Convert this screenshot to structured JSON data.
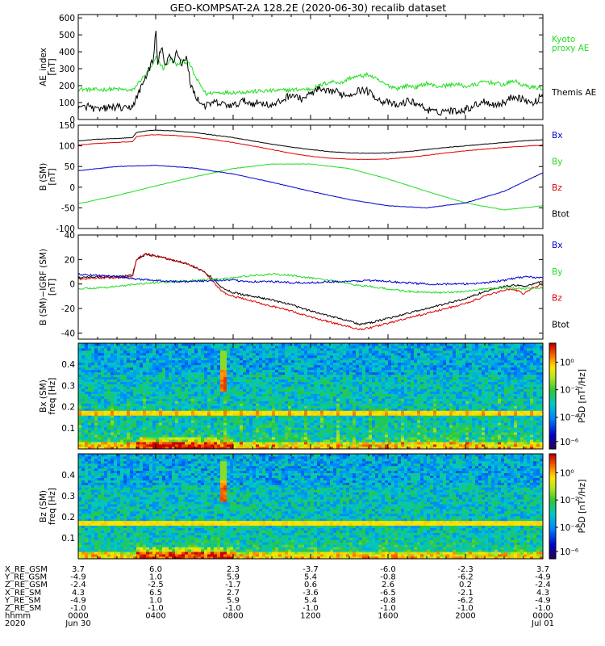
{
  "title": "GEO-KOMPSAT-2A 128.2E (2020-06-30) recalib dataset",
  "colors": {
    "black": "#000000",
    "red": "#e00000",
    "green": "#22dd22",
    "blue": "#0000cc",
    "kyoto": "#22dd22",
    "frame": "#000000"
  },
  "chart_data": [
    {
      "type": "line",
      "id": "ae",
      "ylabel": [
        "AE_index",
        "[nT]"
      ],
      "ylim": [
        0,
        620
      ],
      "yticks": [
        0,
        100,
        200,
        300,
        400,
        500,
        600
      ],
      "xlim": [
        0,
        24
      ],
      "legend": [
        {
          "label_lines": [
            "Kyoto",
            "proxy AE"
          ],
          "color": "#22dd22"
        },
        {
          "label_lines": [
            "Themis AE"
          ],
          "color": "#000000"
        }
      ],
      "series": [
        {
          "name": "Kyoto proxy AE",
          "color": "#22dd22",
          "x": [
            0,
            1,
            2,
            2.8,
            3.2,
            3.6,
            3.9,
            4.0,
            4.4,
            4.8,
            5.1,
            5.4,
            5.8,
            6.0,
            6.6,
            7,
            8,
            9,
            10,
            11,
            12,
            12.8,
            13.2,
            13.6,
            14,
            14.5,
            15,
            15.5,
            16,
            16.5,
            17,
            17.5,
            18,
            18.5,
            19,
            19.5,
            20,
            20.5,
            21,
            21.5,
            22,
            22.5,
            23,
            23.5,
            24
          ],
          "values": [
            180,
            175,
            180,
            170,
            230,
            280,
            330,
            370,
            300,
            360,
            320,
            350,
            320,
            260,
            150,
            160,
            160,
            165,
            170,
            175,
            180,
            215,
            225,
            215,
            245,
            255,
            265,
            230,
            200,
            185,
            200,
            190,
            215,
            195,
            200,
            210,
            195,
            205,
            225,
            215,
            205,
            230,
            200,
            190,
            185
          ]
        },
        {
          "name": "Themis AE",
          "color": "#000000",
          "x": [
            0,
            0.5,
            1,
            1.5,
            2,
            2.5,
            2.8,
            3.1,
            3.4,
            3.7,
            3.9,
            4.0,
            4.1,
            4.3,
            4.5,
            4.7,
            4.9,
            5.1,
            5.3,
            5.6,
            5.8,
            6.0,
            6.3,
            6.6,
            7,
            7.5,
            8,
            8.5,
            9,
            9.5,
            10,
            10.5,
            11,
            11.5,
            12,
            12.4,
            12.8,
            13.2,
            13.6,
            14,
            14.4,
            14.8,
            15.2,
            15.6,
            16,
            16.5,
            17,
            17.5,
            18,
            18.5,
            19,
            19.5,
            20,
            20.5,
            21,
            21.5,
            22,
            22.5,
            23,
            23.5,
            24
          ],
          "values": [
            60,
            80,
            55,
            70,
            75,
            60,
            80,
            150,
            230,
            310,
            360,
            540,
            320,
            440,
            300,
            380,
            340,
            410,
            330,
            360,
            210,
            150,
            100,
            80,
            100,
            90,
            80,
            110,
            95,
            100,
            80,
            110,
            150,
            120,
            150,
            180,
            160,
            170,
            150,
            145,
            170,
            175,
            150,
            110,
            100,
            80,
            110,
            95,
            60,
            40,
            55,
            50,
            60,
            85,
            110,
            85,
            100,
            140,
            120,
            90,
            150
          ]
        }
      ]
    },
    {
      "type": "line",
      "id": "bsm",
      "ylabel": [
        "B (SM)",
        "[nT]"
      ],
      "ylim": [
        -100,
        150
      ],
      "yticks": [
        -100,
        -50,
        0,
        50,
        100,
        150
      ],
      "xlim": [
        0,
        24
      ],
      "legend": [
        {
          "label_lines": [
            "Bx"
          ],
          "color": "#0000cc"
        },
        {
          "label_lines": [
            "By"
          ],
          "color": "#22dd22"
        },
        {
          "label_lines": [
            "Bz"
          ],
          "color": "#e00000"
        },
        {
          "label_lines": [
            "Btot"
          ],
          "color": "#000000"
        }
      ],
      "series": [
        {
          "name": "Btot",
          "color": "#000000",
          "x": [
            0,
            1,
            2,
            2.8,
            3,
            3.6,
            4,
            5,
            6,
            7,
            8,
            9,
            10,
            11,
            12,
            13,
            14,
            15,
            16,
            17,
            18,
            19,
            20,
            21,
            22,
            23,
            24
          ],
          "values": [
            112,
            116,
            118,
            120,
            132,
            137,
            138,
            136,
            132,
            126,
            120,
            112,
            104,
            97,
            91,
            86,
            83,
            82,
            83,
            86,
            91,
            96,
            100,
            104,
            108,
            112,
            115
          ]
        },
        {
          "name": "Bz",
          "color": "#e00000",
          "x": [
            0,
            1,
            2,
            2.8,
            3,
            3.6,
            4,
            5,
            6,
            7,
            8,
            9,
            10,
            11,
            12,
            13,
            14,
            15,
            16,
            17,
            18,
            19,
            20,
            21,
            22,
            23,
            24
          ],
          "values": [
            102,
            106,
            108,
            110,
            122,
            126,
            127,
            125,
            121,
            115,
            108,
            100,
            91,
            82,
            75,
            70,
            68,
            67,
            68,
            72,
            77,
            83,
            88,
            92,
            96,
            99,
            102
          ]
        },
        {
          "name": "By",
          "color": "#22dd22",
          "x": [
            0,
            2,
            4,
            6,
            8,
            10,
            12,
            14,
            16,
            18,
            20,
            22,
            24
          ],
          "values": [
            -40,
            -20,
            3,
            25,
            45,
            56,
            56,
            45,
            20,
            -10,
            -38,
            -55,
            -45
          ]
        },
        {
          "name": "Bx",
          "color": "#0000cc",
          "x": [
            0,
            2,
            4,
            6,
            8,
            10,
            12,
            14,
            16,
            18,
            20,
            22,
            24
          ],
          "values": [
            40,
            50,
            53,
            46,
            32,
            12,
            -10,
            -30,
            -45,
            -50,
            -38,
            -10,
            35
          ]
        }
      ]
    },
    {
      "type": "line",
      "id": "dbsm",
      "ylabel": [
        "B (SM)−IGRF (SM)",
        "[nT]"
      ],
      "ylim": [
        -45,
        40
      ],
      "yticks": [
        -40,
        -20,
        0,
        20,
        40
      ],
      "xlim": [
        0,
        24
      ],
      "legend": [
        {
          "label_lines": [
            "Bx"
          ],
          "color": "#0000cc"
        },
        {
          "label_lines": [
            "By"
          ],
          "color": "#22dd22"
        },
        {
          "label_lines": [
            "Bz"
          ],
          "color": "#e00000"
        },
        {
          "label_lines": [
            "Btot"
          ],
          "color": "#000000"
        }
      ],
      "series": [
        {
          "name": "Btot",
          "color": "#000000",
          "x": [
            0,
            1,
            2,
            2.8,
            3,
            3.5,
            4,
            4.5,
            5,
            5.5,
            6,
            6.5,
            7,
            7.5,
            8,
            9,
            10,
            11,
            12,
            13,
            14,
            14.5,
            15,
            15.5,
            16,
            17,
            18,
            19,
            20,
            21,
            22,
            22.5,
            23,
            23.5,
            24
          ],
          "values": [
            5,
            6,
            6,
            7,
            20,
            24,
            23,
            21,
            19,
            17,
            14,
            10,
            4,
            -4,
            -7,
            -10,
            -13,
            -17,
            -22,
            -26,
            -30,
            -33,
            -32,
            -30,
            -28,
            -24,
            -20,
            -16,
            -12,
            -6,
            -2,
            -1,
            -2,
            0,
            2
          ]
        },
        {
          "name": "Bz",
          "color": "#e00000",
          "x": [
            0,
            1,
            2,
            2.8,
            3,
            3.5,
            4,
            4.5,
            5,
            5.5,
            6,
            6.5,
            7,
            7.5,
            8,
            9,
            10,
            11,
            12,
            13,
            14,
            14.5,
            15,
            15.5,
            16,
            17,
            18,
            19,
            20,
            21,
            22,
            22.5,
            23,
            23.5,
            24
          ],
          "values": [
            4,
            5,
            5,
            6,
            20,
            25,
            23,
            21,
            19,
            17,
            14,
            10,
            1,
            -7,
            -10,
            -14,
            -18,
            -22,
            -27,
            -31,
            -35,
            -37,
            -36,
            -34,
            -32,
            -28,
            -24,
            -20,
            -16,
            -10,
            -5,
            -4,
            -8,
            -3,
            0
          ]
        },
        {
          "name": "By",
          "color": "#22dd22",
          "x": [
            0,
            1,
            2,
            3,
            4,
            5,
            6,
            7,
            8,
            9,
            10,
            11,
            12,
            13,
            14,
            15,
            16,
            17,
            18,
            19,
            20,
            21,
            22,
            23,
            24
          ],
          "values": [
            -4,
            -3,
            -2,
            0,
            1,
            2,
            3,
            4,
            5,
            7,
            8,
            7,
            5,
            3,
            0,
            -2,
            -4,
            -6,
            -7,
            -7,
            -6,
            -4,
            -3,
            -4,
            -3
          ]
        },
        {
          "name": "Bx",
          "color": "#0000cc",
          "x": [
            0,
            1,
            2,
            3,
            4,
            5,
            6,
            7,
            8,
            9,
            10,
            11,
            12,
            13,
            14,
            15,
            16,
            17,
            18,
            19,
            20,
            21,
            22,
            23,
            24
          ],
          "values": [
            8,
            7,
            6,
            4,
            3,
            2,
            2,
            3,
            3,
            2,
            2,
            1,
            1,
            2,
            2,
            3,
            2,
            1,
            0,
            0,
            0,
            1,
            3,
            6,
            5
          ]
        }
      ]
    },
    {
      "type": "heatmap",
      "id": "spec_bx",
      "ylabel": [
        "Bx (SM)",
        "freq [Hz]"
      ],
      "ylim": [
        0,
        0.5
      ],
      "yticks": [
        0.1,
        0.2,
        0.3,
        0.4
      ],
      "xlim": [
        0,
        24
      ],
      "colorbar_label": "PSD [nT²/Hz]",
      "colorbar_ticks": [
        "10⁰",
        "10⁻²",
        "10⁻⁴",
        "10⁻⁶"
      ]
    },
    {
      "type": "heatmap",
      "id": "spec_bz",
      "ylabel": [
        "Bz (SM)",
        "freq [Hz]"
      ],
      "ylim": [
        0,
        0.5
      ],
      "yticks": [
        0.1,
        0.2,
        0.3,
        0.4
      ],
      "xlim": [
        0,
        24
      ],
      "colorbar_label": "PSD [nT²/Hz]",
      "colorbar_ticks": [
        "10⁰",
        "10⁻²",
        "10⁻⁴",
        "10⁻⁶"
      ]
    }
  ],
  "axis_table": {
    "row_labels": [
      "X_RE_GSM",
      "Y_RE_GSM",
      "Z_RE_GSM",
      "X_RE_SM",
      "Y_RE_SM",
      "Z_RE_SM",
      "hhmm",
      "2020"
    ],
    "hours": [
      0,
      4,
      8,
      12,
      16,
      20,
      24
    ],
    "rows": [
      [
        "3.7",
        "6.0",
        "2.3",
        "-3.7",
        "-6.0",
        "-2.3",
        "3.7"
      ],
      [
        "-4.9",
        "1.0",
        "5.9",
        "5.4",
        "-0.8",
        "-6.2",
        "-4.9"
      ],
      [
        "-2.4",
        "-2.5",
        "-1.7",
        "0.6",
        "2.6",
        "0.2",
        "-2.4"
      ],
      [
        "4.3",
        "6.5",
        "2.7",
        "-3.6",
        "-6.5",
        "-2.1",
        "4.3"
      ],
      [
        "-4.9",
        "1.0",
        "5.9",
        "5.4",
        "-0.8",
        "-6.2",
        "-4.9"
      ],
      [
        "-1.0",
        "-1.0",
        "-1.0",
        "-1.0",
        "-1.0",
        "-1.0",
        "-1.0"
      ],
      [
        "0000",
        "0400",
        "0800",
        "1200",
        "1600",
        "2000",
        "0000"
      ],
      [
        "Jun 30",
        "",
        "",
        "",
        "",
        "",
        "Jul 01"
      ]
    ]
  }
}
